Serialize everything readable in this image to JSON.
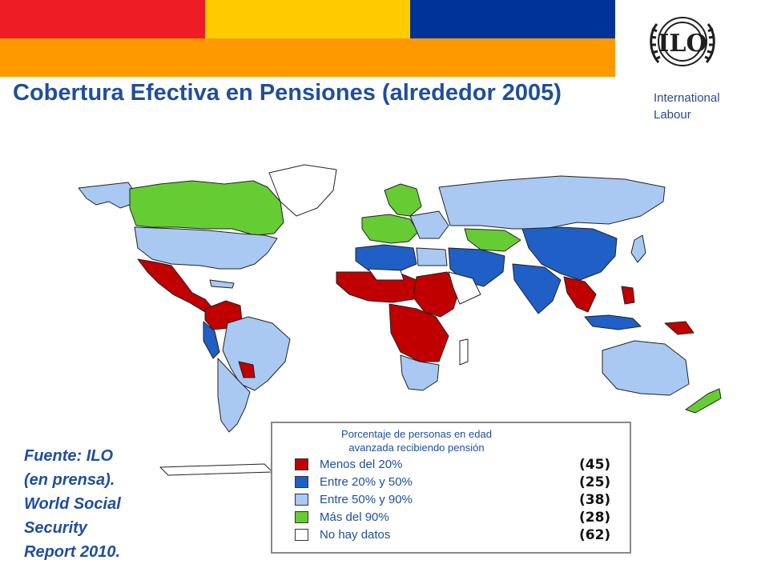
{
  "header": {
    "title": "Cobertura Efectiva en Pensiones (alrededor 2005)",
    "band_colors": [
      "#ee1c25",
      "#ffcc00",
      "#003399",
      "#ff9900"
    ]
  },
  "logo": {
    "text": "ILO",
    "icon": "ilo-logo-icon",
    "org_name_line1": "International",
    "org_name_line2": "Labour"
  },
  "source": {
    "line1": "Fuente: ILO",
    "line2": "(en prensa).",
    "line3": "World Social",
    "line4": "Security",
    "line5": "Report 2010."
  },
  "legend": {
    "title_line1": "Porcentaje de personas en edad",
    "title_line2": "avanzada recibiendo pensión",
    "items": [
      {
        "label": "Menos del 20%",
        "count": "(45)",
        "color": "#c00000"
      },
      {
        "label": "Entre 20% y 50%",
        "count": "(25)",
        "color": "#1f5fc6"
      },
      {
        "label": "Entre 50% y 90%",
        "count": "(38)",
        "color": "#a9c9f2"
      },
      {
        "label": "Más del 90%",
        "count": "(28)",
        "color": "#66cc33"
      },
      {
        "label": "No hay datos",
        "count": "(62)",
        "color": "#ffffff"
      }
    ]
  }
}
